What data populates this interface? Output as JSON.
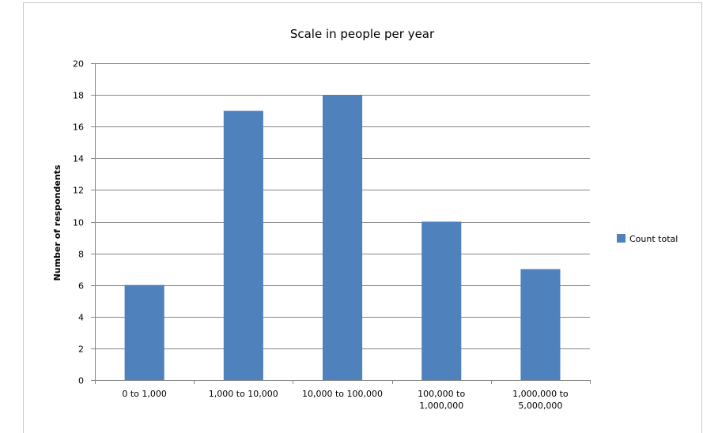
{
  "chart_data": {
    "type": "bar",
    "title": "Scale in people per year",
    "xlabel": "",
    "ylabel": "Number of respondents",
    "ylim": [
      0,
      20
    ],
    "ytick_step": 2,
    "grid": true,
    "legend_position": "right",
    "categories": [
      [
        "0 to 1,000"
      ],
      [
        "1,000 to 10,000"
      ],
      [
        "10,000 to 100,000"
      ],
      [
        "100,000 to",
        "1,000,000"
      ],
      [
        "1,000,000 to",
        "5,000,000"
      ]
    ],
    "series": [
      {
        "name": "Count total",
        "color": "#4f81bd",
        "values": [
          6,
          17,
          18,
          10,
          7
        ]
      }
    ]
  }
}
